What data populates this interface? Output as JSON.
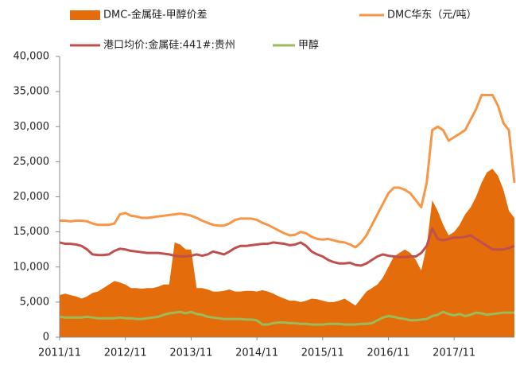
{
  "chart_data": {
    "type": "line",
    "x": [
      "2011/11",
      "2011/12",
      "2012/01",
      "2012/02",
      "2012/03",
      "2012/04",
      "2012/05",
      "2012/06",
      "2012/07",
      "2012/08",
      "2012/09",
      "2012/10",
      "2012/11",
      "2012/12",
      "2013/01",
      "2013/02",
      "2013/03",
      "2013/04",
      "2013/05",
      "2013/06",
      "2013/07",
      "2013/08",
      "2013/09",
      "2013/10",
      "2013/11",
      "2013/12",
      "2014/01",
      "2014/02",
      "2014/03",
      "2014/04",
      "2014/05",
      "2014/06",
      "2014/07",
      "2014/08",
      "2014/09",
      "2014/10",
      "2014/11",
      "2014/12",
      "2015/01",
      "2015/02",
      "2015/03",
      "2015/04",
      "2015/05",
      "2015/06",
      "2015/07",
      "2015/08",
      "2015/09",
      "2015/10",
      "2015/11",
      "2015/12",
      "2016/01",
      "2016/02",
      "2016/03",
      "2016/04",
      "2016/05",
      "2016/06",
      "2016/07",
      "2016/08",
      "2016/09",
      "2016/10",
      "2016/11",
      "2016/12",
      "2017/01",
      "2017/02",
      "2017/03",
      "2017/04",
      "2017/05",
      "2017/06",
      "2017/07",
      "2017/08",
      "2017/09",
      "2017/10",
      "2017/11",
      "2017/12",
      "2018/01",
      "2018/02",
      "2018/03",
      "2018/04",
      "2018/05",
      "2018/06",
      "2018/07",
      "2018/08",
      "2018/09",
      "2018/10"
    ],
    "xticks": [
      "2011/11",
      "2012/11",
      "2013/11",
      "2014/11",
      "2015/11",
      "2016/11",
      "2017/11"
    ],
    "ylim": [
      0,
      40000
    ],
    "yticks": [
      0,
      {
        "value": 5000,
        "label": "5,000"
      },
      {
        "value": 10000,
        "label": "10,000"
      },
      {
        "value": 15000,
        "label": "15,000"
      },
      {
        "value": 20000,
        "label": "20,000"
      },
      {
        "value": 25000,
        "label": "25,000"
      },
      {
        "value": 30000,
        "label": "30,000"
      },
      {
        "value": 35000,
        "label": "35,000"
      },
      {
        "value": 40000,
        "label": "40,000"
      }
    ],
    "series": [
      {
        "name": "DMC-金属硅-甲醇价差",
        "type": "area",
        "color": "#e46c0a",
        "values": [
          6000,
          6200,
          6000,
          5800,
          5500,
          5800,
          6300,
          6500,
          7000,
          7500,
          8000,
          7800,
          7500,
          7000,
          7000,
          6900,
          7000,
          7000,
          7200,
          7500,
          7500,
          13500,
          13200,
          12500,
          12500,
          7000,
          7000,
          6800,
          6500,
          6500,
          6600,
          6800,
          6500,
          6500,
          6600,
          6600,
          6500,
          6700,
          6500,
          6200,
          5800,
          5500,
          5200,
          5200,
          5000,
          5200,
          5500,
          5400,
          5200,
          5000,
          5000,
          5200,
          5500,
          5000,
          4500,
          5500,
          6500,
          7000,
          7500,
          8500,
          10000,
          11500,
          12000,
          12500,
          12000,
          11000,
          9500,
          13000,
          19500,
          18000,
          16000,
          14500,
          15000,
          16000,
          17500,
          18500,
          20000,
          22000,
          23500,
          24000,
          23000,
          21000,
          18000,
          17000
        ]
      },
      {
        "name": "DMC华东（元/吨）",
        "type": "line",
        "color": "#f79646",
        "values": [
          16600,
          16600,
          16500,
          16600,
          16600,
          16500,
          16200,
          16000,
          16000,
          16000,
          16200,
          17500,
          17700,
          17300,
          17200,
          17000,
          17000,
          17100,
          17200,
          17300,
          17400,
          17500,
          17600,
          17500,
          17300,
          17000,
          16600,
          16300,
          16000,
          15900,
          15900,
          16200,
          16700,
          16900,
          16900,
          16900,
          16700,
          16300,
          16000,
          15600,
          15200,
          14800,
          14500,
          14600,
          15000,
          14800,
          14300,
          14000,
          13900,
          14000,
          13800,
          13600,
          13500,
          13200,
          12800,
          13500,
          14500,
          16000,
          17500,
          19000,
          20500,
          21300,
          21300,
          21000,
          20500,
          19500,
          18500,
          22000,
          29500,
          30000,
          29500,
          28000,
          28500,
          29000,
          29500,
          31000,
          32500,
          34500,
          34500,
          34500,
          33000,
          30500,
          29500,
          22000
        ]
      },
      {
        "name": "港口均价:金属硅:441#:贵州",
        "type": "line",
        "color": "#c0504d",
        "values": [
          13500,
          13300,
          13300,
          13200,
          13000,
          12500,
          11800,
          11700,
          11700,
          11800,
          12300,
          12600,
          12500,
          12300,
          12200,
          12100,
          12000,
          12000,
          12000,
          11900,
          11800,
          11600,
          11500,
          11500,
          11600,
          11800,
          11600,
          11800,
          12200,
          12000,
          11800,
          12200,
          12700,
          13000,
          13000,
          13100,
          13200,
          13300,
          13300,
          13500,
          13400,
          13300,
          13100,
          13200,
          13500,
          13000,
          12200,
          11800,
          11500,
          11000,
          10700,
          10500,
          10500,
          10600,
          10300,
          10200,
          10500,
          11000,
          11500,
          11800,
          11600,
          11500,
          11400,
          11400,
          11500,
          11500,
          12000,
          13000,
          15500,
          14000,
          13800,
          14000,
          14200,
          14200,
          14300,
          14500,
          14000,
          13500,
          13000,
          12500,
          12500,
          12500,
          12700,
          13000
        ]
      },
      {
        "name": "甲醇",
        "type": "line",
        "color": "#9bbb59",
        "values": [
          2900,
          2800,
          2800,
          2800,
          2800,
          2900,
          2800,
          2700,
          2700,
          2700,
          2700,
          2800,
          2700,
          2700,
          2600,
          2600,
          2700,
          2800,
          2900,
          3200,
          3400,
          3500,
          3600,
          3400,
          3600,
          3300,
          3200,
          2900,
          2800,
          2700,
          2600,
          2600,
          2600,
          2600,
          2500,
          2500,
          2400,
          1800,
          1800,
          2000,
          2100,
          2100,
          2000,
          2000,
          1900,
          1900,
          1800,
          1800,
          1800,
          1900,
          1900,
          1900,
          1800,
          1800,
          1800,
          1900,
          1900,
          2000,
          2400,
          2800,
          3000,
          2900,
          2700,
          2600,
          2400,
          2400,
          2500,
          2600,
          3000,
          3200,
          3600,
          3300,
          3100,
          3300,
          3000,
          3200,
          3500,
          3400,
          3200,
          3300,
          3400,
          3500,
          3500,
          3500
        ]
      }
    ]
  }
}
